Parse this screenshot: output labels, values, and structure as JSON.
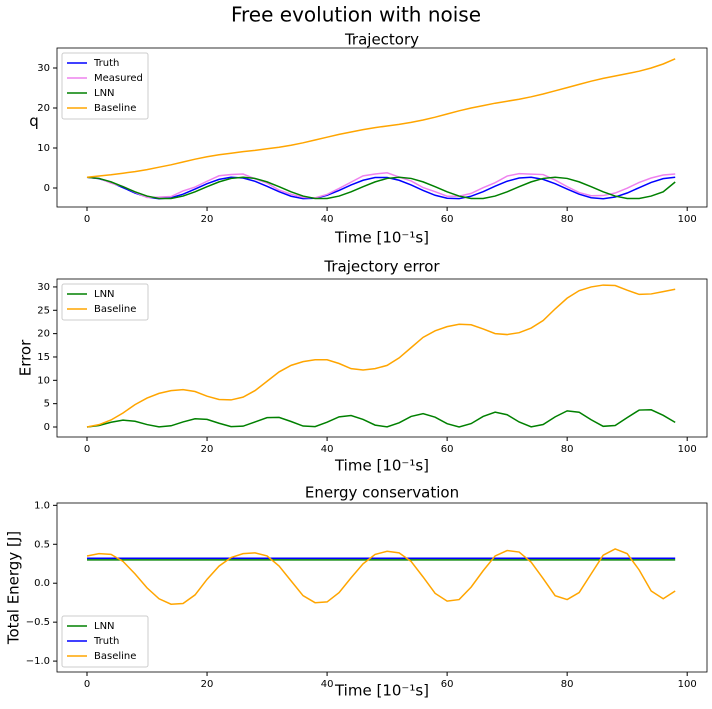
{
  "title": "Free evolution with noise",
  "chart_data": [
    {
      "type": "line",
      "title": "Trajectory",
      "xlabel": "Time [10⁻¹s]",
      "ylabel": "q",
      "legend": "upper left",
      "x": [
        0,
        2,
        4,
        6,
        8,
        10,
        12,
        14,
        16,
        18,
        20,
        22,
        24,
        26,
        28,
        30,
        32,
        34,
        36,
        38,
        40,
        42,
        44,
        46,
        48,
        50,
        52,
        54,
        56,
        58,
        60,
        62,
        64,
        66,
        68,
        70,
        72,
        74,
        76,
        78,
        80,
        82,
        84,
        86,
        88,
        90,
        92,
        94,
        96,
        98
      ],
      "xlim": [
        -5,
        103.3
      ],
      "xticks": [
        0,
        20,
        40,
        60,
        80,
        100
      ],
      "ylim": [
        -4.75,
        35
      ],
      "yticks": [
        0,
        10,
        20,
        30
      ],
      "series": [
        {
          "name": "Truth",
          "color": "#0000ff",
          "values": [
            2.7,
            2.35,
            1.4,
            0.09,
            -1.25,
            -2.26,
            -2.69,
            -2.43,
            -1.54,
            -0.26,
            1.09,
            2.16,
            2.68,
            2.5,
            1.68,
            0.43,
            -0.93,
            -2.06,
            -2.65,
            -2.56,
            -1.81,
            -0.6,
            0.77,
            1.94,
            2.61,
            2.61,
            1.94,
            0.77,
            -0.6,
            -1.82,
            -2.56,
            -2.65,
            -2.05,
            -0.93,
            0.44,
            1.69,
            2.5,
            2.68,
            2.16,
            1.09,
            -0.26,
            -1.54,
            -2.43,
            -2.69,
            -2.26,
            -1.25,
            0.09,
            1.4,
            2.35,
            2.7
          ]
        },
        {
          "name": "Measured",
          "color": "#ee82ee",
          "values": [
            2.7,
            2.45,
            1.2,
            0.39,
            -1.05,
            -2.36,
            -2.29,
            -2.13,
            -0.74,
            0.24,
            1.69,
            3.06,
            3.38,
            3.5,
            2.28,
            1.23,
            -0.53,
            -1.56,
            -2.35,
            -2.46,
            -1.61,
            -0.1,
            1.47,
            3.04,
            3.51,
            3.81,
            2.74,
            1.77,
            0.1,
            -0.92,
            -2.06,
            -2.05,
            -1.35,
            0.07,
            1.34,
            2.99,
            3.6,
            3.48,
            3.36,
            1.99,
            0.34,
            -1.14,
            -1.93,
            -1.89,
            -1.26,
            -0.05,
            1.39,
            2.5,
            3.25,
            3.5
          ]
        },
        {
          "name": "LNN",
          "color": "#008000",
          "values": [
            2.7,
            2.39,
            1.53,
            0.33,
            -0.96,
            -2.02,
            -2.62,
            -2.62,
            -2.02,
            -0.96,
            0.33,
            1.53,
            2.39,
            2.7,
            2.39,
            1.53,
            0.33,
            -0.96,
            -2.02,
            -2.62,
            -2.62,
            -2.02,
            -0.96,
            0.33,
            1.53,
            2.39,
            2.7,
            2.39,
            1.53,
            0.33,
            -0.96,
            -2.02,
            -2.62,
            -2.62,
            -2.02,
            -0.96,
            0.33,
            1.53,
            2.39,
            2.7,
            2.39,
            1.53,
            0.33,
            -0.96,
            -2.02,
            -2.62,
            -2.62,
            -2.02,
            -0.96,
            1.5
          ]
        },
        {
          "name": "Baseline",
          "color": "#ffa500",
          "values": [
            2.7,
            3.0,
            3.3,
            3.7,
            4.1,
            4.6,
            5.2,
            5.8,
            6.5,
            7.2,
            7.8,
            8.3,
            8.7,
            9.1,
            9.4,
            9.8,
            10.2,
            10.7,
            11.3,
            12.0,
            12.7,
            13.4,
            14.0,
            14.6,
            15.1,
            15.5,
            15.9,
            16.4,
            17.0,
            17.7,
            18.5,
            19.3,
            20.0,
            20.6,
            21.2,
            21.7,
            22.2,
            22.8,
            23.5,
            24.3,
            25.1,
            25.9,
            26.7,
            27.4,
            28.0,
            28.6,
            29.2,
            30.0,
            31.0,
            32.3
          ]
        }
      ]
    },
    {
      "type": "line",
      "title": "Trajectory error",
      "xlabel": "Time [10⁻¹s]",
      "ylabel": "Error",
      "legend": "upper left",
      "x": [
        0,
        2,
        4,
        6,
        8,
        10,
        12,
        14,
        16,
        18,
        20,
        22,
        24,
        26,
        28,
        30,
        32,
        34,
        36,
        38,
        40,
        42,
        44,
        46,
        48,
        50,
        52,
        54,
        56,
        58,
        60,
        62,
        64,
        66,
        68,
        70,
        72,
        74,
        76,
        78,
        80,
        82,
        84,
        86,
        88,
        90,
        92,
        94,
        96,
        98
      ],
      "xlim": [
        -5,
        103.3
      ],
      "xticks": [
        0,
        20,
        40,
        60,
        80,
        100
      ],
      "ylim": [
        -2.14,
        31.7
      ],
      "yticks": [
        0,
        5,
        10,
        15,
        20,
        25,
        30
      ],
      "series": [
        {
          "name": "LNN",
          "color": "#008000",
          "values": [
            0,
            0.32,
            1.02,
            1.46,
            1.23,
            0.52,
            0.02,
            0.26,
            1.09,
            1.76,
            1.64,
            0.81,
            0.08,
            0.18,
            1.09,
            2.01,
            2.06,
            1.18,
            0.21,
            0.09,
            1.03,
            2.18,
            2.47,
            1.62,
            0.41,
            0.03,
            0.9,
            2.27,
            2.86,
            2.11,
            0.71,
            0,
            0.73,
            2.26,
            3.19,
            2.63,
            1.08,
            0.04,
            0.53,
            2.17,
            3.46,
            3.17,
            1.55,
            0.15,
            0.33,
            2.01,
            3.63,
            3.69,
            2.5,
            1.0
          ]
        },
        {
          "name": "Baseline",
          "color": "#ffa500",
          "values": [
            0,
            0.5,
            1.5,
            3.0,
            4.8,
            6.2,
            7.2,
            7.8,
            8.0,
            7.6,
            6.6,
            5.9,
            5.8,
            6.4,
            7.8,
            9.8,
            11.8,
            13.2,
            14.0,
            14.4,
            14.4,
            13.6,
            12.5,
            12.2,
            12.5,
            13.2,
            14.8,
            17.0,
            19.2,
            20.6,
            21.5,
            22.0,
            21.9,
            21.0,
            20.0,
            19.8,
            20.2,
            21.2,
            22.8,
            25.3,
            27.6,
            29.2,
            30.0,
            30.4,
            30.3,
            29.3,
            28.4,
            28.5,
            29.0,
            29.5
          ]
        }
      ]
    },
    {
      "type": "line",
      "title": "Energy conservation",
      "xlabel": "Time [10⁻¹s]",
      "ylabel": "Total Energy [J]",
      "legend": "lower left",
      "x": [
        0,
        2,
        4,
        6,
        8,
        10,
        12,
        14,
        16,
        18,
        20,
        22,
        24,
        26,
        28,
        30,
        32,
        34,
        36,
        38,
        40,
        42,
        44,
        46,
        48,
        50,
        52,
        54,
        56,
        58,
        60,
        62,
        64,
        66,
        68,
        70,
        72,
        74,
        76,
        78,
        80,
        82,
        84,
        86,
        88,
        90,
        92,
        94,
        96,
        98
      ],
      "xlim": [
        -5,
        103.3
      ],
      "xticks": [
        0,
        20,
        40,
        60,
        80,
        100
      ],
      "ylim": [
        -1.14,
        1.03
      ],
      "yticks": [
        {
          "value": -1,
          "label": "−1.0"
        },
        {
          "value": -0.5,
          "label": "−0.5"
        },
        {
          "value": 0,
          "label": "0.0"
        },
        {
          "value": 0.5,
          "label": "0.5"
        },
        {
          "value": 1,
          "label": "1.0"
        }
      ],
      "series": [
        {
          "name": "LNN",
          "color": "#008000",
          "values": [
            0.3,
            0.3,
            0.3,
            0.3,
            0.3,
            0.3,
            0.3,
            0.3,
            0.3,
            0.3,
            0.3,
            0.3,
            0.3,
            0.3,
            0.3,
            0.3,
            0.3,
            0.3,
            0.3,
            0.3,
            0.3,
            0.3,
            0.3,
            0.3,
            0.3,
            0.3,
            0.3,
            0.3,
            0.3,
            0.3,
            0.3,
            0.3,
            0.3,
            0.3,
            0.3,
            0.3,
            0.3,
            0.3,
            0.3,
            0.3,
            0.3,
            0.3,
            0.3,
            0.3,
            0.3,
            0.3,
            0.3,
            0.3,
            0.3,
            0.3
          ]
        },
        {
          "name": "Truth",
          "color": "#0000ff",
          "values": [
            0.32,
            0.32,
            0.32,
            0.32,
            0.32,
            0.32,
            0.32,
            0.32,
            0.32,
            0.32,
            0.32,
            0.32,
            0.32,
            0.32,
            0.32,
            0.32,
            0.32,
            0.32,
            0.32,
            0.32,
            0.32,
            0.32,
            0.32,
            0.32,
            0.32,
            0.32,
            0.32,
            0.32,
            0.32,
            0.32,
            0.32,
            0.32,
            0.32,
            0.32,
            0.32,
            0.32,
            0.32,
            0.32,
            0.32,
            0.32,
            0.32,
            0.32,
            0.32,
            0.32,
            0.32,
            0.32,
            0.32,
            0.32,
            0.32,
            0.32
          ]
        },
        {
          "name": "Baseline",
          "color": "#ffa500",
          "values": [
            0.35,
            0.38,
            0.37,
            0.28,
            0.12,
            -0.06,
            -0.2,
            -0.27,
            -0.26,
            -0.15,
            0.05,
            0.22,
            0.33,
            0.38,
            0.39,
            0.35,
            0.22,
            0.03,
            -0.16,
            -0.25,
            -0.24,
            -0.12,
            0.07,
            0.25,
            0.37,
            0.41,
            0.39,
            0.28,
            0.08,
            -0.13,
            -0.23,
            -0.21,
            -0.05,
            0.16,
            0.35,
            0.42,
            0.4,
            0.27,
            0.06,
            -0.16,
            -0.21,
            -0.12,
            0.12,
            0.36,
            0.44,
            0.38,
            0.17,
            -0.1,
            -0.2,
            -0.1
          ]
        }
      ]
    }
  ]
}
